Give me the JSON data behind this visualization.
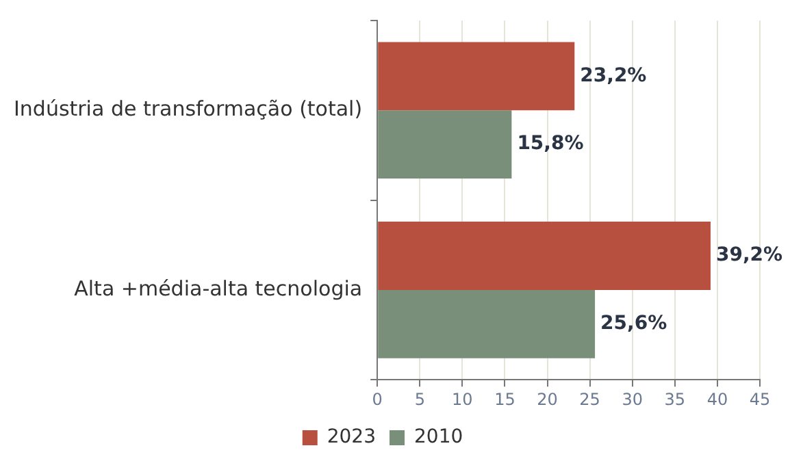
{
  "chart_data": {
    "type": "bar",
    "orientation": "horizontal",
    "categories": [
      "Indústria de transformação (total)",
      "Alta +média-alta tecnologia"
    ],
    "series": [
      {
        "name": "2023",
        "color": "#b85040",
        "values": [
          23.2,
          39.2
        ],
        "value_labels": [
          "23,2%",
          "39,2%"
        ]
      },
      {
        "name": "2010",
        "color": "#7a8f79",
        "values": [
          15.8,
          25.6
        ],
        "value_labels": [
          "15,8%",
          "25,6%"
        ]
      }
    ],
    "xlim": [
      0,
      45
    ],
    "xticks": [
      0,
      5,
      10,
      15,
      20,
      25,
      30,
      35,
      40,
      45
    ],
    "grid": "x",
    "legend": "bottom"
  }
}
